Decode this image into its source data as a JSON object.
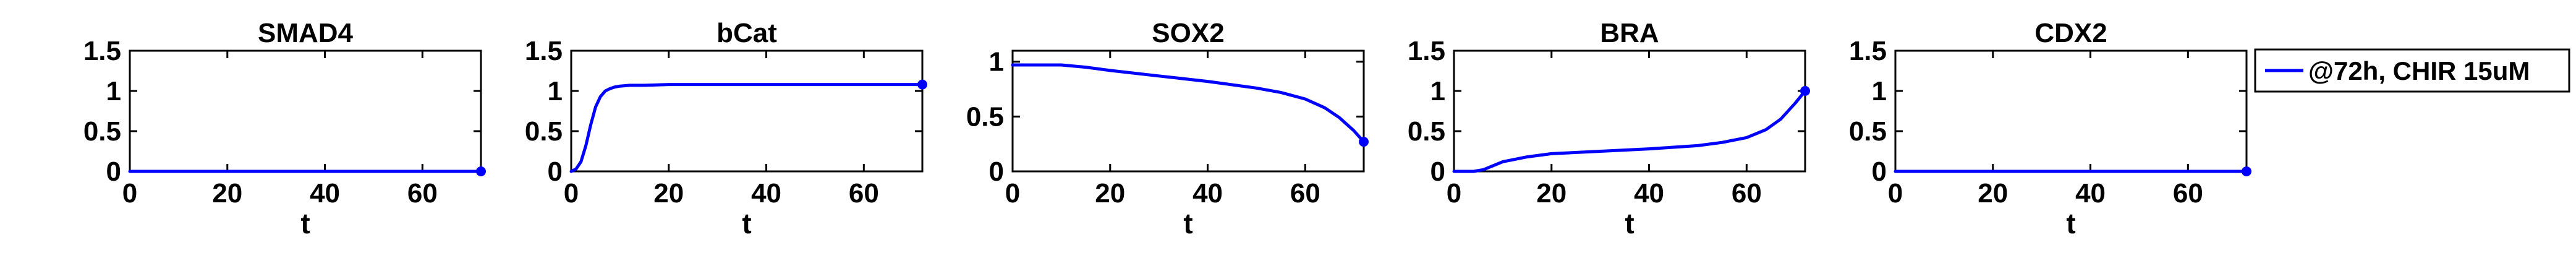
{
  "colors": {
    "series": "#0000ff",
    "axes": "#000000"
  },
  "legend": {
    "placement": "right",
    "entries": [
      "@72h, CHIR 15uM"
    ]
  },
  "chart_data": [
    {
      "type": "line",
      "title": "SMAD4",
      "xlabel": "t",
      "ylabel": "",
      "xlim": [
        0,
        72
      ],
      "ylim": [
        0,
        1.5
      ],
      "xticks": [
        "0",
        "20",
        "40",
        "60"
      ],
      "yticks": [
        "0",
        "0.5",
        "1",
        "1.5"
      ],
      "series": [
        {
          "name": "@72h, CHIR 15uM",
          "x": [
            0,
            72
          ],
          "y": [
            0,
            0
          ]
        }
      ]
    },
    {
      "type": "line",
      "title": "bCat",
      "xlabel": "t",
      "ylabel": "",
      "xlim": [
        0,
        72
      ],
      "ylim": [
        0,
        1.5
      ],
      "xticks": [
        "0",
        "20",
        "40",
        "60"
      ],
      "yticks": [
        "0",
        "0.5",
        "1",
        "1.5"
      ],
      "series": [
        {
          "name": "@72h, CHIR 15uM",
          "x": [
            0,
            1,
            2,
            3,
            4,
            5,
            6,
            7,
            8,
            9,
            10,
            12,
            15,
            20,
            30,
            40,
            50,
            60,
            72
          ],
          "y": [
            0,
            0.03,
            0.12,
            0.32,
            0.58,
            0.8,
            0.93,
            1.0,
            1.03,
            1.05,
            1.06,
            1.07,
            1.07,
            1.08,
            1.08,
            1.08,
            1.08,
            1.08,
            1.08
          ]
        }
      ]
    },
    {
      "type": "line",
      "title": "SOX2",
      "xlabel": "t",
      "ylabel": "",
      "xlim": [
        0,
        72
      ],
      "ylim": [
        0,
        1.1
      ],
      "xticks": [
        "0",
        "20",
        "40",
        "60"
      ],
      "yticks": [
        "0",
        "0.5",
        "1"
      ],
      "series": [
        {
          "name": "@72h, CHIR 15uM",
          "x": [
            0,
            10,
            15,
            20,
            30,
            40,
            50,
            55,
            60,
            64,
            67,
            70,
            72
          ],
          "y": [
            0.97,
            0.97,
            0.95,
            0.92,
            0.87,
            0.82,
            0.76,
            0.72,
            0.66,
            0.58,
            0.49,
            0.37,
            0.27
          ]
        }
      ]
    },
    {
      "type": "line",
      "title": "BRA",
      "xlabel": "t",
      "ylabel": "",
      "xlim": [
        0,
        72
      ],
      "ylim": [
        0,
        1.5
      ],
      "xticks": [
        "0",
        "20",
        "40",
        "60"
      ],
      "yticks": [
        "0",
        "0.5",
        "1",
        "1.5"
      ],
      "series": [
        {
          "name": "@72h, CHIR 15uM",
          "x": [
            0,
            4,
            6,
            8,
            10,
            15,
            20,
            30,
            40,
            50,
            55,
            60,
            64,
            67,
            70,
            72
          ],
          "y": [
            0,
            0,
            0.02,
            0.07,
            0.12,
            0.18,
            0.22,
            0.25,
            0.28,
            0.32,
            0.36,
            0.42,
            0.52,
            0.65,
            0.85,
            1.0
          ]
        }
      ],
      "end_marker": {
        "x": 72,
        "y": 1.0
      }
    },
    {
      "type": "line",
      "title": "CDX2",
      "xlabel": "t",
      "ylabel": "",
      "xlim": [
        0,
        72
      ],
      "ylim": [
        0,
        1.5
      ],
      "xticks": [
        "0",
        "20",
        "40",
        "60"
      ],
      "yticks": [
        "0",
        "0.5",
        "1",
        "1.5"
      ],
      "series": [
        {
          "name": "@72h, CHIR 15uM",
          "x": [
            0,
            72
          ],
          "y": [
            0,
            0
          ]
        }
      ],
      "end_marker": {
        "x": 72,
        "y": 0
      }
    }
  ]
}
